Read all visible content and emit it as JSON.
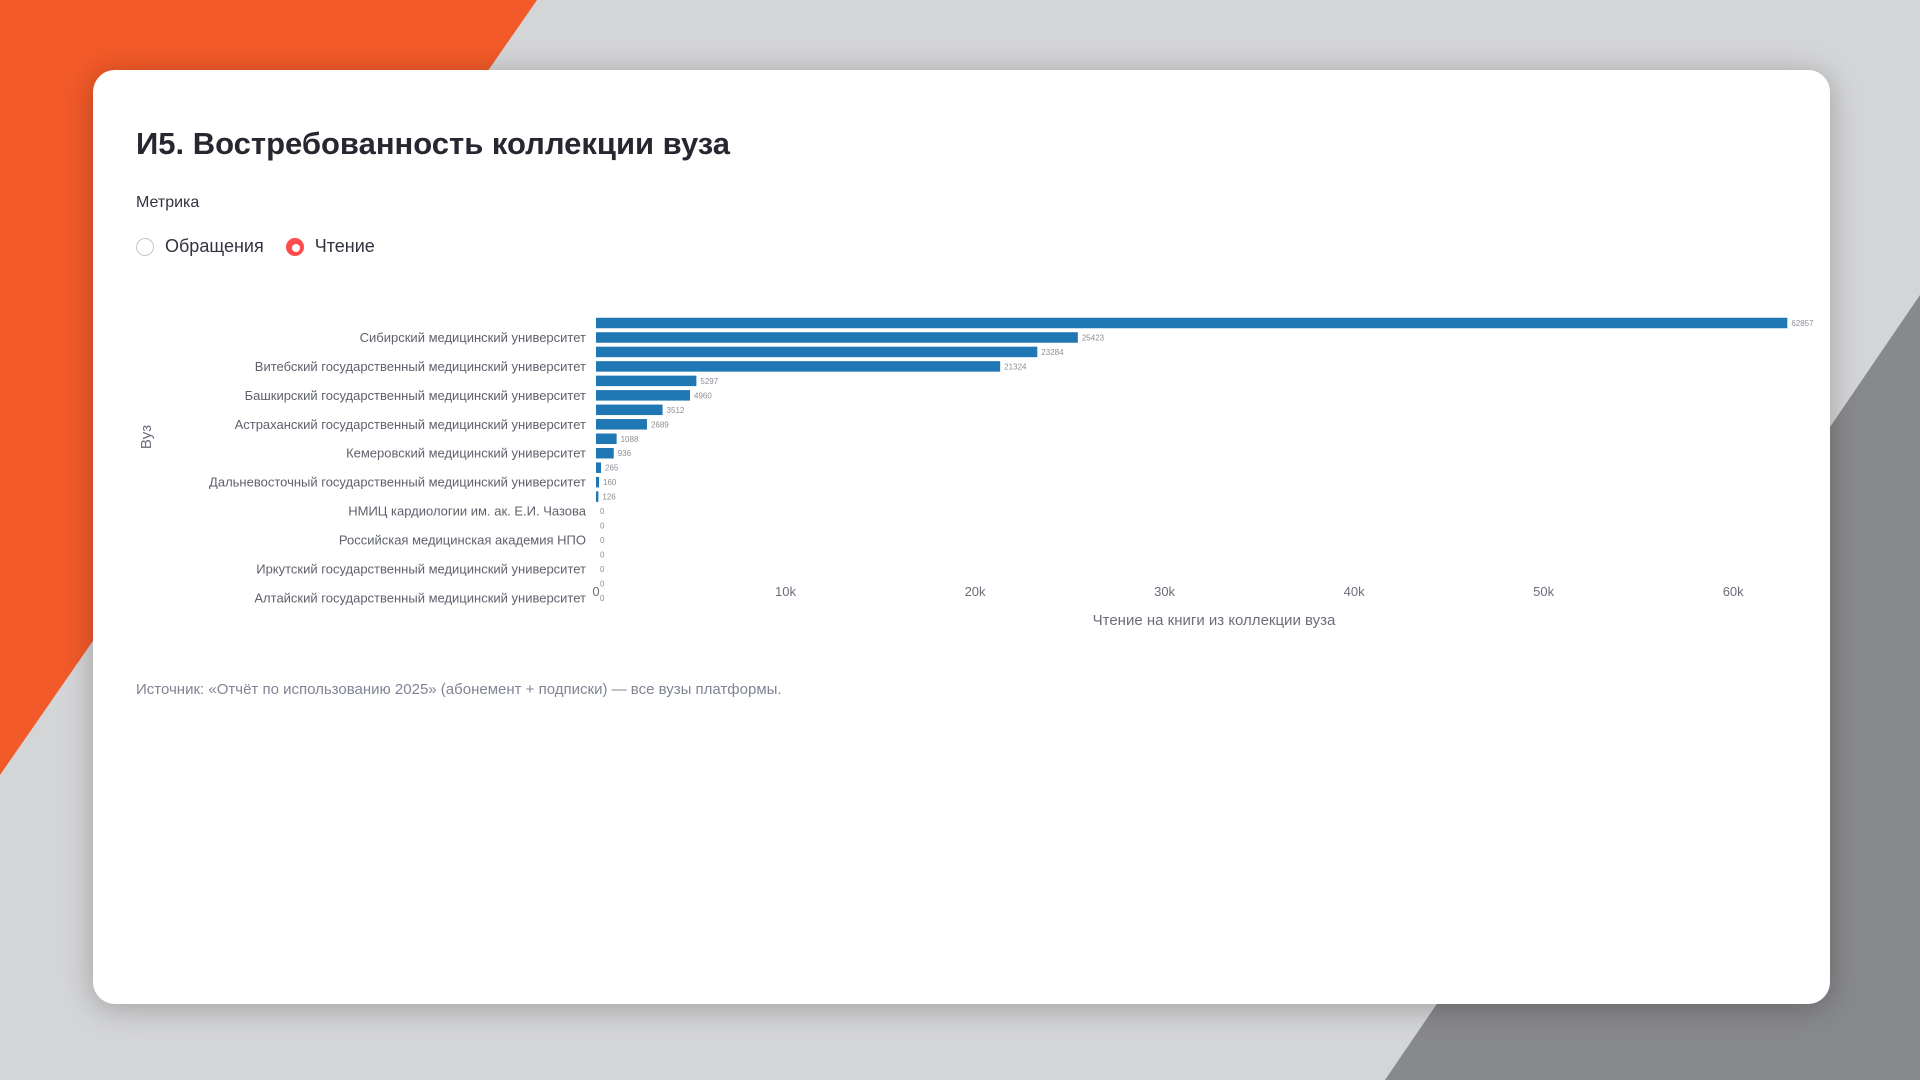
{
  "page": {
    "title": "И5. Востребованность коллекции вуза",
    "metric_label": "Метрика",
    "radio_options": [
      {
        "label": "Обращения",
        "selected": false
      },
      {
        "label": "Чтение",
        "selected": true
      }
    ],
    "source_note": "Источник: «Отчёт по использованию 2025» (абонемент + подписки) — все вузы платформы."
  },
  "colors": {
    "accent_orange": "#f25a29",
    "bar": "#1f77b4",
    "radio_selected": "#ff4b4b"
  },
  "chart_data": {
    "type": "bar",
    "orientation": "horizontal",
    "xlabel": "Чтение на книги из коллекции вуза",
    "ylabel": "Вуз",
    "xlim": [
      0,
      64000
    ],
    "x_ticks": [
      0,
      10000,
      20000,
      30000,
      40000,
      50000,
      60000
    ],
    "x_tick_labels": [
      "0",
      "10k",
      "20k",
      "30k",
      "40k",
      "50k",
      "60k"
    ],
    "categories": [
      "",
      "Сибирский медицинский университет",
      "",
      "Витебский государственный медицинский университет",
      "",
      "Башкирский государственный медицинский университет",
      "",
      "Астраханский государственный медицинский университет",
      "",
      "Кемеровский медицинский университет",
      "",
      "Дальневосточный государственный медицинский университет",
      "",
      "НМИЦ кардиологии им. ак. Е.И. Чазова",
      "",
      "Российская медицинская академия НПО",
      "",
      "Иркутский государственный медицинский университет",
      "",
      "Алтайский государственный медицинский университет"
    ],
    "values": [
      62857,
      25423,
      23284,
      21324,
      5297,
      4960,
      3512,
      2689,
      1088,
      936,
      265,
      160,
      126,
      0,
      0,
      0,
      0,
      0,
      0,
      0
    ],
    "data_labels": [
      "62857",
      "25423",
      "23284",
      "21324",
      "5297",
      "4960",
      "3512",
      "2689",
      "1088",
      "936",
      "265",
      "160",
      "126",
      "0",
      "0",
      "0",
      "0",
      "0",
      "0",
      "0"
    ],
    "grid": false,
    "legend": false
  }
}
